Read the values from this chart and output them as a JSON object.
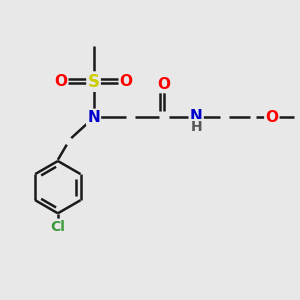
{
  "bg_color": "#e8e8e8",
  "bond_color": "#1a1a1a",
  "bond_width": 1.8,
  "atom_colors": {
    "C": "#1a1a1a",
    "H": "#555555",
    "N": "#0000cc",
    "O": "#ff0000",
    "S": "#cccc00",
    "Cl": "#3a9a3a"
  },
  "font_size": 11,
  "S_font_size": 12,
  "Cl_font_size": 10,
  "N_font_size": 11,
  "O_font_size": 11
}
